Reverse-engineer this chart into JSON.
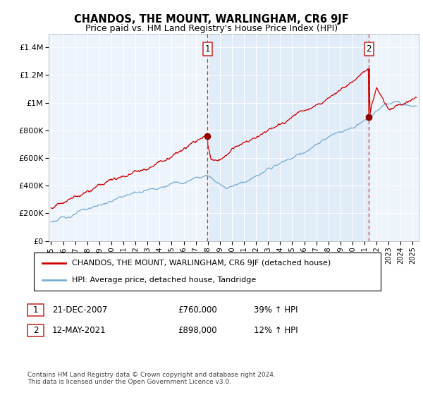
{
  "title": "CHANDOS, THE MOUNT, WARLINGHAM, CR6 9JF",
  "subtitle": "Price paid vs. HM Land Registry's House Price Index (HPI)",
  "legend_line1": "CHANDOS, THE MOUNT, WARLINGHAM, CR6 9JF (detached house)",
  "legend_line2": "HPI: Average price, detached house, Tandridge",
  "annotation1_label": "1",
  "annotation1_date": "21-DEC-2007",
  "annotation1_value": "£760,000",
  "annotation1_hpi": "39% ↑ HPI",
  "annotation1_year": 2007.97,
  "annotation1_price": 760000,
  "annotation2_label": "2",
  "annotation2_date": "12-MAY-2021",
  "annotation2_value": "£898,000",
  "annotation2_hpi": "12% ↑ HPI",
  "annotation2_year": 2021.37,
  "annotation2_price": 898000,
  "line1_color": "#cc0000",
  "line2_color": "#7bafd4",
  "shade_color": "#ddeeff",
  "background_color": "#eef4fb",
  "ylim": [
    0,
    1500000
  ],
  "xlim_start": 1994.8,
  "xlim_end": 2025.5,
  "footer": "Contains HM Land Registry data © Crown copyright and database right 2024.\nThis data is licensed under the Open Government Licence v3.0.",
  "yticks": [
    0,
    200000,
    400000,
    600000,
    800000,
    1000000,
    1200000,
    1400000
  ],
  "ytick_labels": [
    "£0",
    "£200K",
    "£400K",
    "£600K",
    "£800K",
    "£1M",
    "£1.2M",
    "£1.4M"
  ],
  "xticks": [
    1995,
    1996,
    1997,
    1998,
    1999,
    2000,
    2001,
    2002,
    2003,
    2004,
    2005,
    2006,
    2007,
    2008,
    2009,
    2010,
    2011,
    2012,
    2013,
    2014,
    2015,
    2016,
    2017,
    2018,
    2019,
    2020,
    2021,
    2022,
    2023,
    2024,
    2025
  ]
}
